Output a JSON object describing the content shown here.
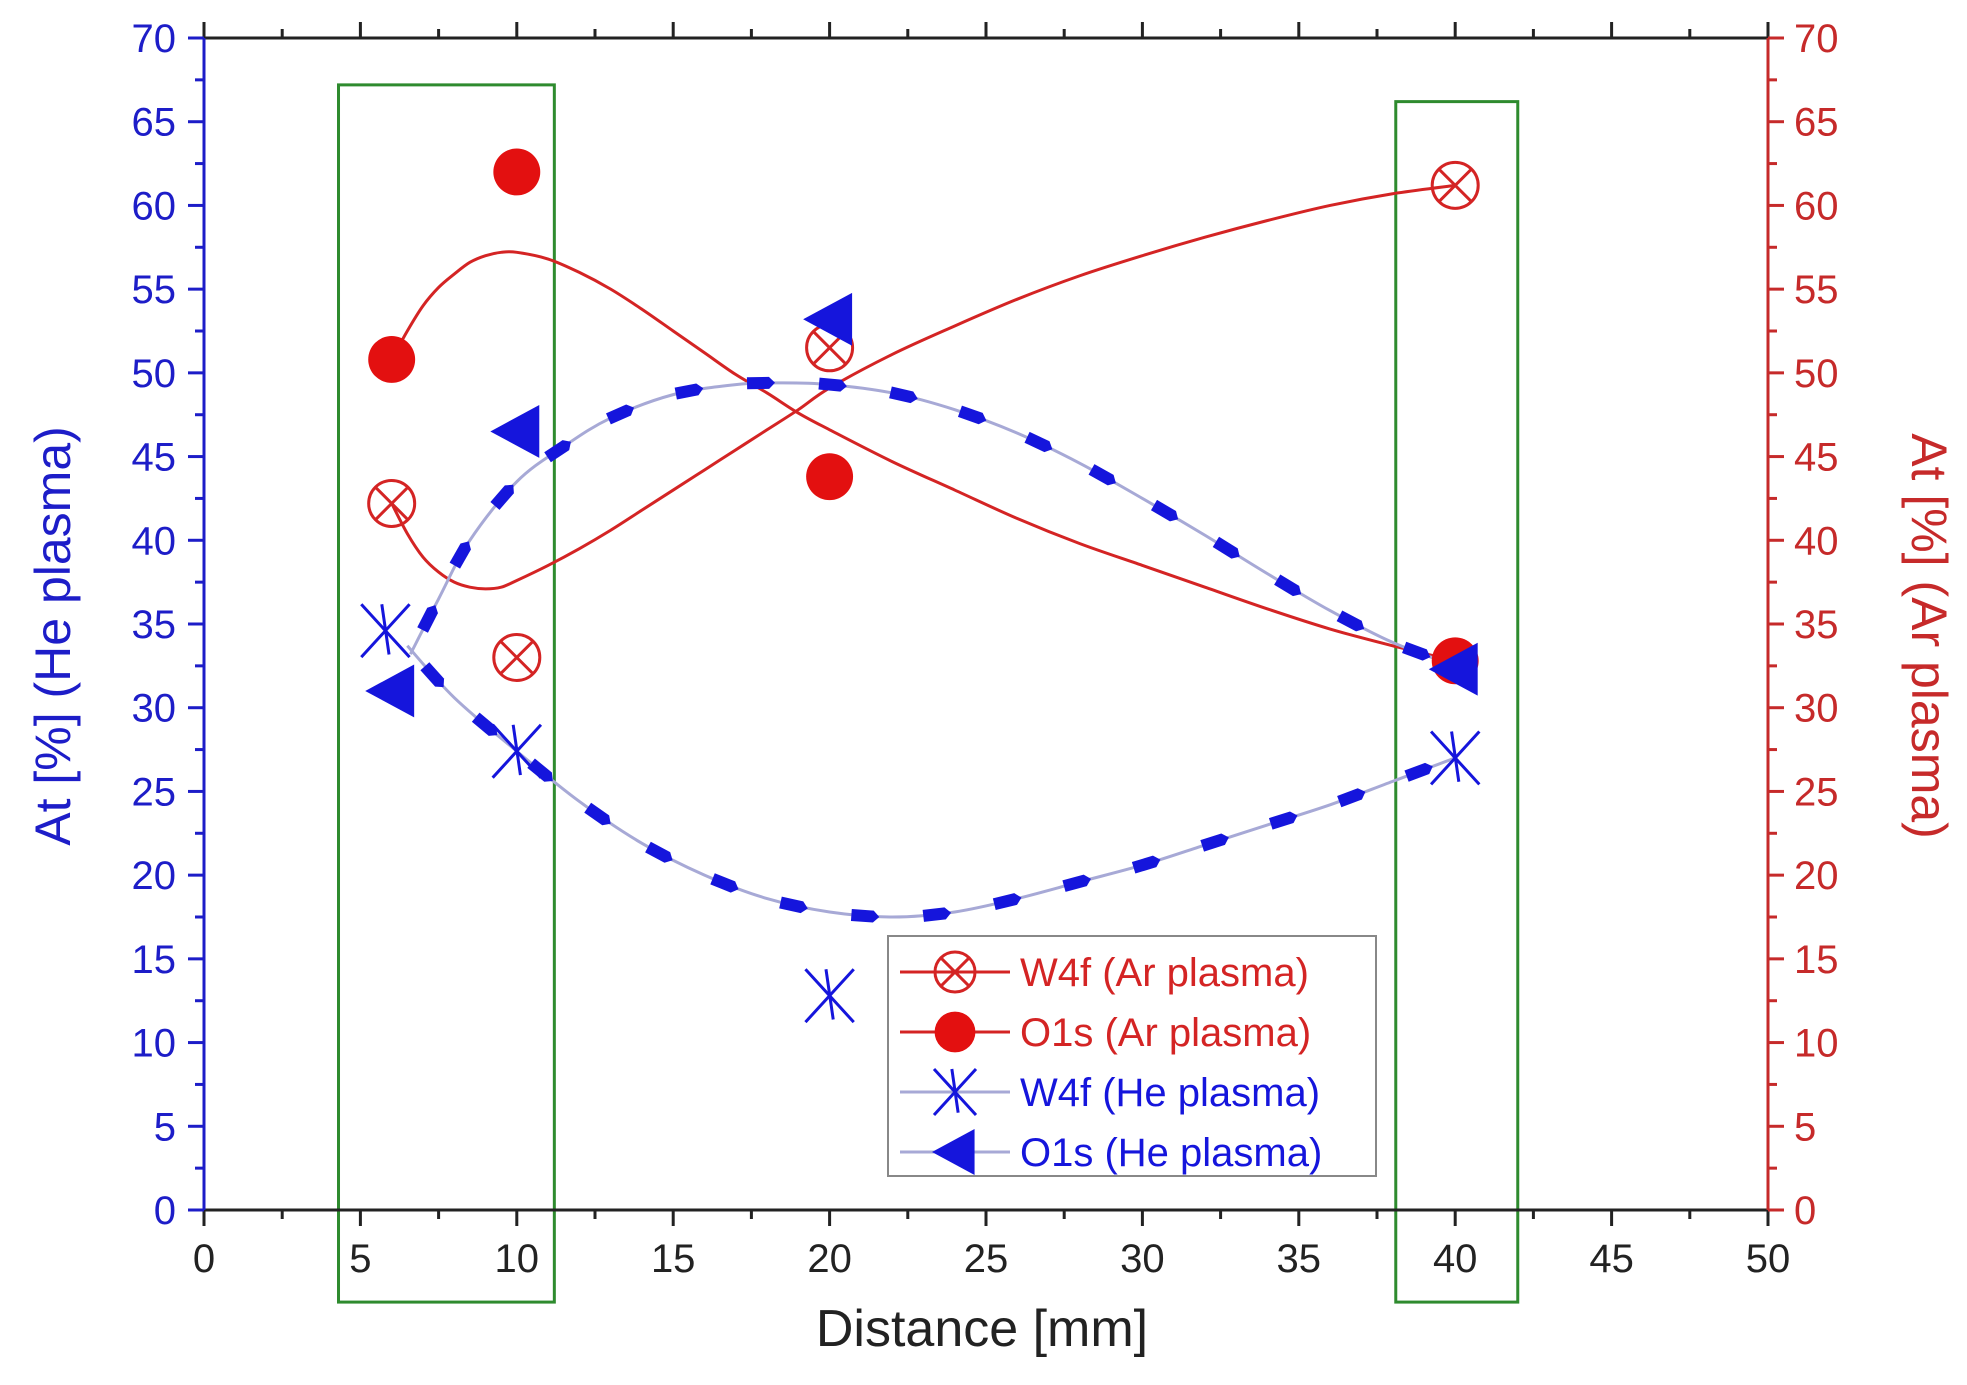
{
  "chart_data": {
    "type": "scatter",
    "title": "",
    "xlabel": "Distance [mm]",
    "ylabel_left": "At [%] (He plasma)",
    "ylabel_right": "At [%] (Ar plasma)",
    "xlim": [
      0,
      50
    ],
    "ylim_left": [
      0,
      70
    ],
    "ylim_right": [
      0,
      70
    ],
    "x_ticks": [
      "0",
      "5",
      "10",
      "15",
      "20",
      "25",
      "30",
      "35",
      "40",
      "45",
      "50"
    ],
    "y_ticks_left": [
      "0",
      "5",
      "10",
      "15",
      "20",
      "25",
      "30",
      "35",
      "40",
      "45",
      "50",
      "55",
      "60",
      "65",
      "70"
    ],
    "y_ticks_right": [
      "0",
      "5",
      "10",
      "15",
      "20",
      "25",
      "30",
      "35",
      "40",
      "45",
      "50",
      "55",
      "60",
      "65",
      "70"
    ],
    "grid": false,
    "legend_position": "bottom-center",
    "colors": {
      "ar": "#d42424",
      "he": "#1515dc",
      "he_line": "#a7a9d6",
      "highlight_box": "#2e8b2e",
      "left_axis": "#1d1dc8",
      "right_axis": "#c62a2a",
      "bottom_axis": "#222222"
    },
    "series": [
      {
        "name": "W4f (Ar plasma)",
        "axis": "right",
        "marker": "circle-x",
        "color": "#d42424",
        "x": [
          6,
          10,
          20,
          40
        ],
        "y": [
          42.2,
          33.0,
          51.5,
          61.2
        ]
      },
      {
        "name": "O1s (Ar plasma)",
        "axis": "right",
        "marker": "filled-circle",
        "color": "#e31010",
        "x": [
          6,
          10,
          20,
          40
        ],
        "y": [
          50.8,
          62.0,
          43.8,
          32.8
        ]
      },
      {
        "name": "W4f (He plasma)",
        "axis": "left",
        "marker": "x-bar",
        "color": "#1515dc",
        "x": [
          5.8,
          10,
          20,
          40
        ],
        "y": [
          34.6,
          27.4,
          12.8,
          27.0
        ]
      },
      {
        "name": "O1s (He plasma)",
        "axis": "left",
        "marker": "triangle-left",
        "color": "#1515dc",
        "x": [
          6,
          10,
          20,
          40
        ],
        "y": [
          31.0,
          46.5,
          53.2,
          32.3
        ]
      }
    ],
    "fit_curves": [
      {
        "series": "W4f (Ar plasma)",
        "axis": "right",
        "points": [
          [
            6.0,
            42.2
          ],
          [
            6.5,
            40.4
          ],
          [
            7.0,
            39.0
          ],
          [
            7.5,
            38.1
          ],
          [
            8.0,
            37.5
          ],
          [
            8.5,
            37.2
          ],
          [
            9.0,
            37.1
          ],
          [
            9.5,
            37.2
          ],
          [
            10.0,
            37.6
          ],
          [
            11.0,
            38.5
          ],
          [
            12.0,
            39.5
          ],
          [
            13.0,
            40.6
          ],
          [
            14.0,
            41.8
          ],
          [
            15.0,
            43.0
          ],
          [
            16.0,
            44.2
          ],
          [
            17.0,
            45.4
          ],
          [
            18.0,
            46.6
          ],
          [
            19.0,
            47.8
          ],
          [
            20.0,
            49.1
          ],
          [
            22.0,
            51.1
          ],
          [
            24.0,
            52.8
          ],
          [
            26.0,
            54.4
          ],
          [
            28.0,
            55.8
          ],
          [
            30.0,
            57.0
          ],
          [
            32.0,
            58.1
          ],
          [
            34.0,
            59.1
          ],
          [
            36.0,
            60.0
          ],
          [
            38.0,
            60.7
          ],
          [
            40.0,
            61.2
          ]
        ]
      },
      {
        "series": "O1s (Ar plasma)",
        "axis": "right",
        "points": [
          [
            6.0,
            50.8
          ],
          [
            6.5,
            52.5
          ],
          [
            7.0,
            54.0
          ],
          [
            7.5,
            55.1
          ],
          [
            8.0,
            55.9
          ],
          [
            8.5,
            56.6
          ],
          [
            9.0,
            57.0
          ],
          [
            9.5,
            57.2
          ],
          [
            10.0,
            57.2
          ],
          [
            11.0,
            56.8
          ],
          [
            12.0,
            56.0
          ],
          [
            13.0,
            55.0
          ],
          [
            14.0,
            53.8
          ],
          [
            15.0,
            52.5
          ],
          [
            16.0,
            51.2
          ],
          [
            17.0,
            49.9
          ],
          [
            18.0,
            48.8
          ],
          [
            19.0,
            47.6
          ],
          [
            20.0,
            46.6
          ],
          [
            22.0,
            44.7
          ],
          [
            24.0,
            43.0
          ],
          [
            26.0,
            41.3
          ],
          [
            28.0,
            39.8
          ],
          [
            30.0,
            38.5
          ],
          [
            32.0,
            37.2
          ],
          [
            34.0,
            35.9
          ],
          [
            36.0,
            34.7
          ],
          [
            38.0,
            33.7
          ],
          [
            40.0,
            32.8
          ]
        ]
      },
      {
        "series": "W4f (He plasma)",
        "axis": "left",
        "points": [
          [
            6.5,
            33.7
          ],
          [
            8.0,
            30.6
          ],
          [
            10.0,
            27.4
          ],
          [
            12.0,
            24.4
          ],
          [
            14.0,
            21.9
          ],
          [
            16.0,
            20.0
          ],
          [
            18.0,
            18.6
          ],
          [
            20.0,
            17.8
          ],
          [
            22.0,
            17.5
          ],
          [
            24.0,
            17.8
          ],
          [
            26.0,
            18.6
          ],
          [
            28.0,
            19.6
          ],
          [
            30.0,
            20.6
          ],
          [
            32.0,
            21.8
          ],
          [
            34.0,
            23.0
          ],
          [
            36.0,
            24.2
          ],
          [
            38.0,
            25.6
          ],
          [
            40.0,
            27.0
          ]
        ]
      },
      {
        "series": "O1s (He plasma)",
        "axis": "left",
        "points": [
          [
            6.6,
            33.2
          ],
          [
            7.5,
            36.5
          ],
          [
            8.5,
            40.0
          ],
          [
            10.0,
            43.5
          ],
          [
            11.5,
            45.6
          ],
          [
            13.0,
            47.3
          ],
          [
            15.0,
            48.7
          ],
          [
            17.0,
            49.3
          ],
          [
            18.5,
            49.4
          ],
          [
            20.0,
            49.3
          ],
          [
            22.0,
            48.8
          ],
          [
            24.0,
            47.8
          ],
          [
            26.0,
            46.4
          ],
          [
            28.0,
            44.6
          ],
          [
            30.0,
            42.5
          ],
          [
            32.0,
            40.3
          ],
          [
            34.0,
            38.0
          ],
          [
            36.0,
            35.8
          ],
          [
            38.0,
            33.9
          ],
          [
            40.0,
            32.5
          ]
        ]
      }
    ],
    "highlight_regions": [
      {
        "x_range": [
          4.3,
          11.2
        ],
        "y_range": [
          -5.5,
          67.2
        ]
      },
      {
        "x_range": [
          38.1,
          42.0
        ],
        "y_range": [
          -5.5,
          66.2
        ]
      }
    ]
  }
}
